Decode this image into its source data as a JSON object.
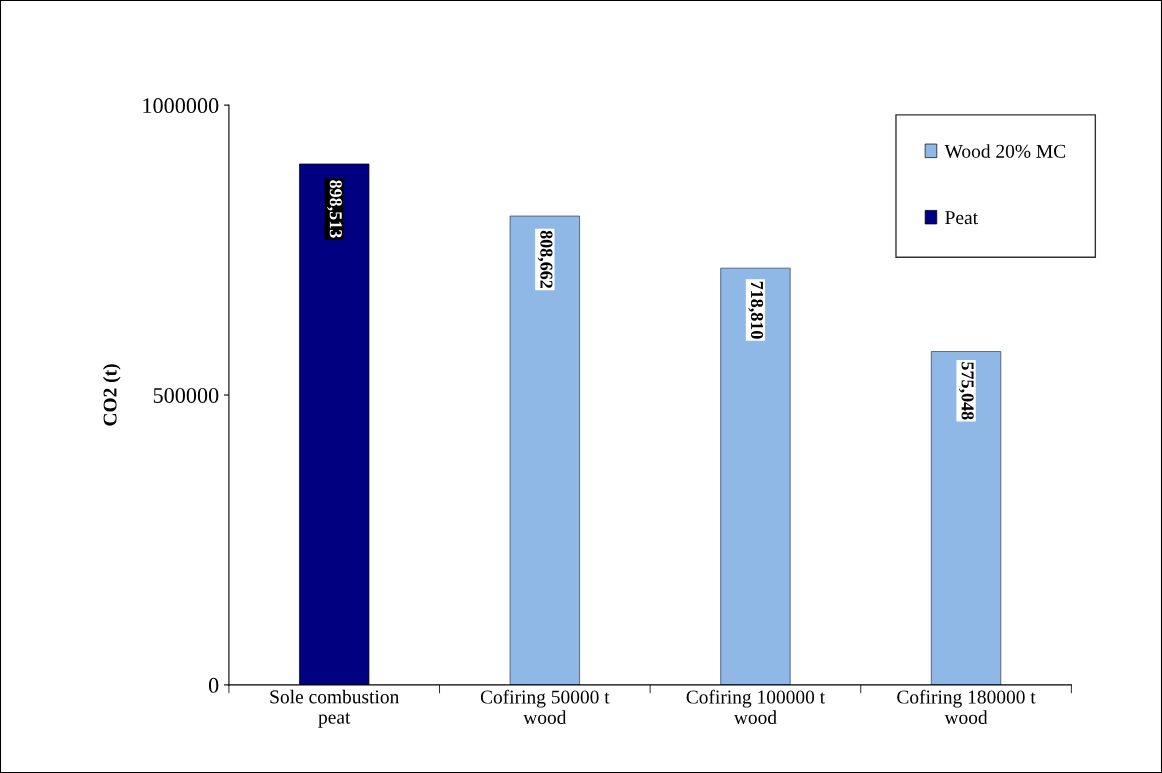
{
  "chart_data": {
    "type": "bar",
    "ylabel": "CO2 (t)",
    "categories": [
      "Sole combustion peat",
      "Cofiring 50000 t wood",
      "Cofiring 100000 t wood",
      "Cofiring 180000 t wood"
    ],
    "series": [
      {
        "name": "Wood 20% MC",
        "color": "#8fb8e6",
        "values": [
          null,
          808662,
          718810,
          575048
        ]
      },
      {
        "name": "Peat",
        "color": "#000080",
        "values": [
          898513,
          null,
          null,
          null
        ]
      }
    ],
    "value_labels": [
      [
        null,
        "808,662",
        "718,810",
        "575,048"
      ],
      [
        "898,513",
        null,
        null,
        null
      ]
    ],
    "ylim": [
      0,
      1000000
    ],
    "yticks": [
      0,
      500000,
      1000000
    ],
    "grid": false,
    "legend": "top right"
  }
}
